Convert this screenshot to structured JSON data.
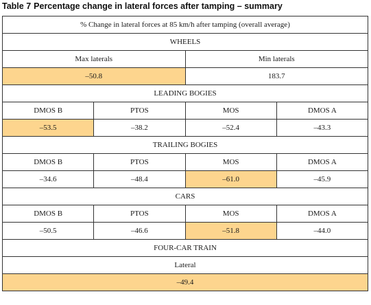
{
  "caption": {
    "number": "Table 7",
    "title": "Percentage change in lateral forces after tamping – summary"
  },
  "colors": {
    "highlight": "#fdd58e",
    "border": "#333333"
  },
  "table": {
    "header": "% Change in lateral forces at 85 km/h after tamping (overall average)",
    "wheels": {
      "heading": "WHEELS",
      "columns": [
        "Max laterals",
        "Min laterals"
      ],
      "values": [
        "–50.8",
        "183.7"
      ]
    },
    "leading_bogies": {
      "heading": "LEADING BOGIES",
      "columns": [
        "DMOS B",
        "PTOS",
        "MOS",
        "DMOS A"
      ],
      "values": [
        "–53.5",
        "–38.2",
        "–52.4",
        "–43.3"
      ]
    },
    "trailing_bogies": {
      "heading": "TRAILING BOGIES",
      "columns": [
        "DMOS B",
        "PTOS",
        "MOS",
        "DMOS A"
      ],
      "values": [
        "–34.6",
        "–48.4",
        "–61.0",
        "–45.9"
      ]
    },
    "cars": {
      "heading": "CARS",
      "columns": [
        "DMOS B",
        "PTOS",
        "MOS",
        "DMOS A"
      ],
      "values": [
        "–50.5",
        "–46.6",
        "–51.8",
        "–44.0"
      ]
    },
    "four_car_train": {
      "heading": "FOUR-CAR TRAIN",
      "column": "Lateral",
      "value": "–49.4"
    }
  }
}
